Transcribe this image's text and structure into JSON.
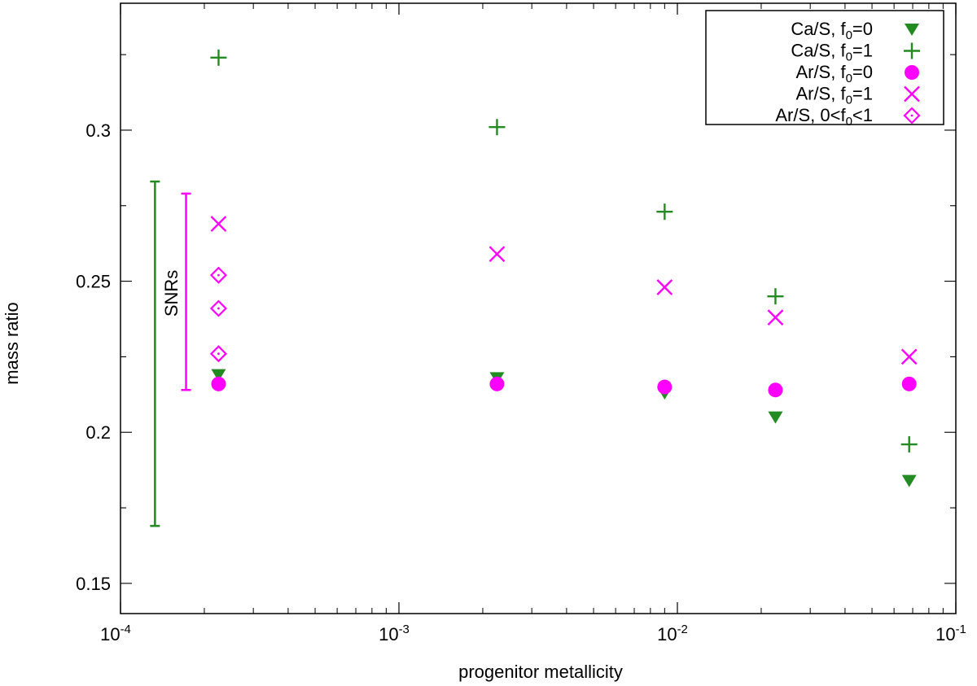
{
  "chart_data": {
    "type": "scatter",
    "title": "",
    "xlabel": "progenitor metallicity",
    "ylabel": "mass ratio",
    "xscale": "log",
    "xlim": [
      0.0001,
      0.1
    ],
    "ylim": [
      0.14,
      0.342
    ],
    "grid": false,
    "legend_position": "top-right",
    "x_major_ticks": [
      {
        "value": 0.0001,
        "base": "10",
        "exp": "-4"
      },
      {
        "value": 0.001,
        "base": "10",
        "exp": "-3"
      },
      {
        "value": 0.01,
        "base": "10",
        "exp": "-2"
      },
      {
        "value": 0.1,
        "base": "10",
        "exp": "-1"
      }
    ],
    "y_ticks": [
      {
        "value": 0.15,
        "label": "0.15"
      },
      {
        "value": 0.2,
        "label": "0.2"
      },
      {
        "value": 0.25,
        "label": "0.25"
      },
      {
        "value": 0.3,
        "label": "0.3"
      }
    ],
    "series": [
      {
        "name": "Ca/S, f0=0",
        "legend": {
          "pre": "Ca/S, f",
          "sub": "0",
          "post": "=0"
        },
        "marker": "triangle-down",
        "color": "#228b22",
        "points": [
          {
            "x": 0.000225,
            "y": 0.219
          },
          {
            "x": 0.00225,
            "y": 0.218
          },
          {
            "x": 0.009,
            "y": 0.213
          },
          {
            "x": 0.0225,
            "y": 0.205
          },
          {
            "x": 0.068,
            "y": 0.184
          }
        ]
      },
      {
        "name": "Ca/S, f0=1",
        "legend": {
          "pre": "Ca/S, f",
          "sub": "0",
          "post": "=1"
        },
        "marker": "plus",
        "color": "#228b22",
        "points": [
          {
            "x": 0.000225,
            "y": 0.324
          },
          {
            "x": 0.00225,
            "y": 0.301
          },
          {
            "x": 0.009,
            "y": 0.273
          },
          {
            "x": 0.0225,
            "y": 0.245
          },
          {
            "x": 0.068,
            "y": 0.196
          }
        ]
      },
      {
        "name": "Ar/S, f0=0",
        "legend": {
          "pre": "Ar/S, f",
          "sub": "0",
          "post": "=0"
        },
        "marker": "circle",
        "color": "#ff00ff",
        "points": [
          {
            "x": 0.000225,
            "y": 0.216
          },
          {
            "x": 0.00225,
            "y": 0.216
          },
          {
            "x": 0.009,
            "y": 0.215
          },
          {
            "x": 0.0225,
            "y": 0.214
          },
          {
            "x": 0.068,
            "y": 0.216
          }
        ]
      },
      {
        "name": "Ar/S, f0=1",
        "legend": {
          "pre": "Ar/S, f",
          "sub": "0",
          "post": "=1"
        },
        "marker": "cross",
        "color": "#ff00ff",
        "points": [
          {
            "x": 0.000225,
            "y": 0.269
          },
          {
            "x": 0.00225,
            "y": 0.259
          },
          {
            "x": 0.009,
            "y": 0.248
          },
          {
            "x": 0.0225,
            "y": 0.238
          },
          {
            "x": 0.068,
            "y": 0.225
          }
        ]
      },
      {
        "name": "Ar/S, 0<f0<1",
        "legend": {
          "pre": "Ar/S, 0<f",
          "sub": "0",
          "post": "<1"
        },
        "marker": "diamond-dot",
        "color": "#ff00ff",
        "points": [
          {
            "x": 0.000225,
            "y": 0.252
          },
          {
            "x": 0.000225,
            "y": 0.241
          },
          {
            "x": 0.000225,
            "y": 0.226
          }
        ]
      }
    ],
    "ranges": [
      {
        "name": "Ca/S SNR range",
        "x": 0.000133,
        "ymin": 0.169,
        "ymax": 0.283,
        "color": "#228b22"
      },
      {
        "name": "Ar/S SNR range",
        "x": 0.000172,
        "ymin": 0.214,
        "ymax": 0.279,
        "color": "#ff00ff"
      }
    ],
    "annotations": [
      {
        "text": "SNRs",
        "x": 0.000152,
        "y": 0.246,
        "rotation": -90
      }
    ]
  }
}
